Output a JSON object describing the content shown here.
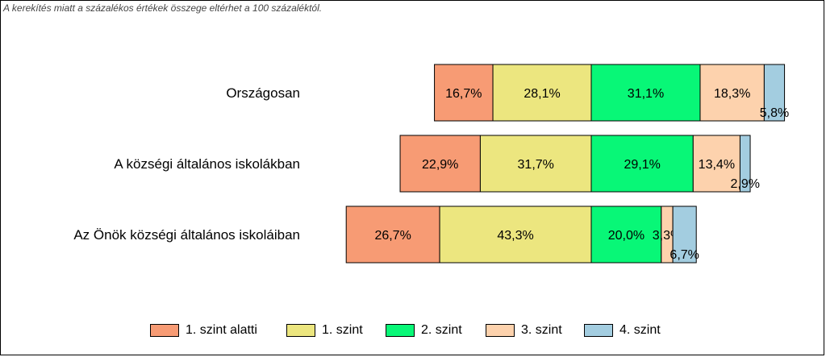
{
  "note": "A kerekítés miatt a  százalékos értékek összege eltérhet a 100 százaléktól.",
  "chart_data": {
    "type": "bar",
    "orientation": "horizontal",
    "stacked": true,
    "categories": [
      "Országosan",
      "A községi általános iskolákban",
      "Az Önök községi általános iskoláiban"
    ],
    "series": [
      {
        "name": "1. szint alatti",
        "color": "#f79b74",
        "values": [
          16.7,
          22.9,
          26.7
        ],
        "labels": [
          "16,7%",
          "22,9%",
          "26,7%"
        ]
      },
      {
        "name": "1. szint",
        "color": "#ece67f",
        "values": [
          28.1,
          31.7,
          43.3
        ],
        "labels": [
          "28,1%",
          "31,7%",
          "43,3%"
        ]
      },
      {
        "name": "2. szint",
        "color": "#08f777",
        "values": [
          31.1,
          29.1,
          20.0
        ],
        "labels": [
          "31,1%",
          "29,1%",
          "20,0%"
        ]
      },
      {
        "name": "3. szint",
        "color": "#fdd2ad",
        "values": [
          18.3,
          13.4,
          3.3
        ],
        "labels": [
          "18,3%",
          "13,4%",
          "3,3%"
        ]
      },
      {
        "name": "4. szint",
        "color": "#a3cde0",
        "values": [
          5.8,
          2.9,
          6.7
        ],
        "labels": [
          "5,8%",
          "2,9%",
          "6,7%"
        ]
      }
    ],
    "alignment": "diverging at boundary between 1. szint and 2. szint",
    "legend_position": "bottom",
    "grid": false
  }
}
